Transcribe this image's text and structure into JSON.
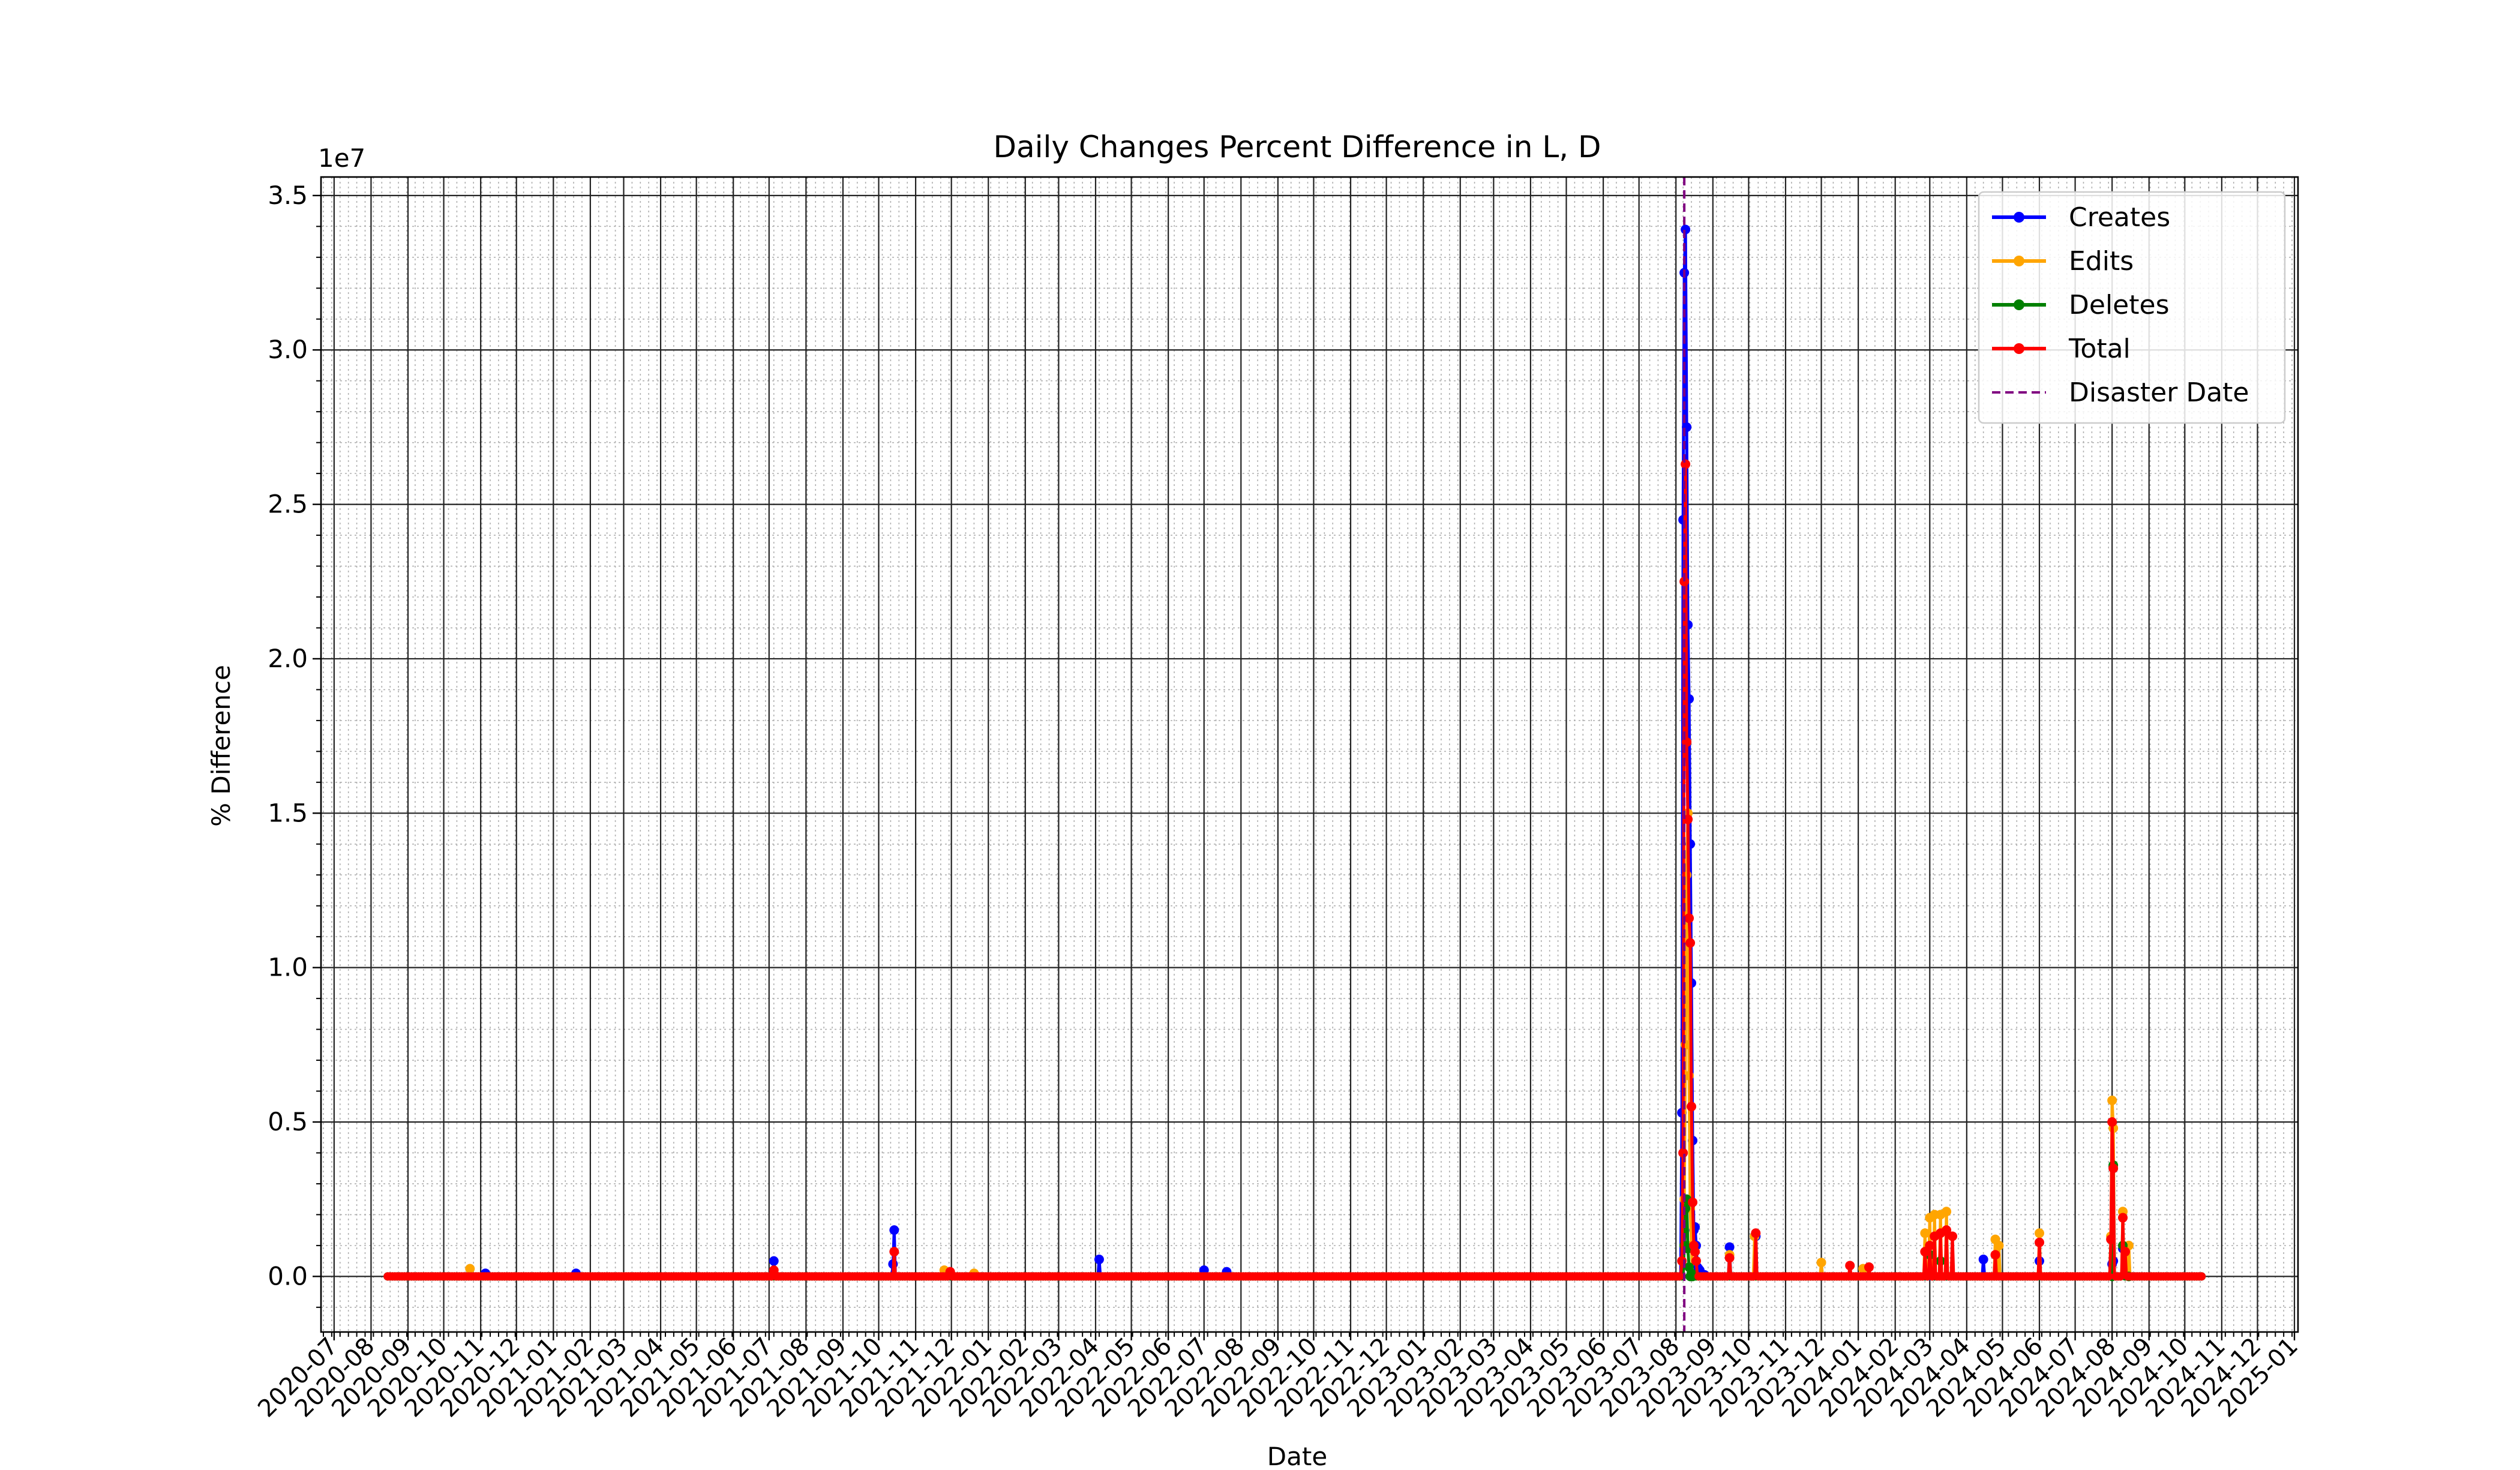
{
  "chart_data": {
    "type": "line",
    "title": "Daily Changes Percent Difference in L, D",
    "xlabel": "Date",
    "ylabel": "% Difference",
    "y_offset_text": "1e7",
    "xlim": [
      "2020-06-20",
      "2025-01-04"
    ],
    "ylim": [
      -1800000,
      35600000
    ],
    "y_ticks": [
      0,
      5000000,
      10000000,
      15000000,
      20000000,
      25000000,
      30000000,
      35000000
    ],
    "y_tick_labels": [
      "0.0",
      "0.5",
      "1.0",
      "1.5",
      "2.0",
      "2.5",
      "3.0",
      "3.5"
    ],
    "x_ticks": [
      "2020-07",
      "2020-08",
      "2020-09",
      "2020-10",
      "2020-11",
      "2020-12",
      "2021-01",
      "2021-02",
      "2021-03",
      "2021-04",
      "2021-05",
      "2021-06",
      "2021-07",
      "2021-08",
      "2021-09",
      "2021-10",
      "2021-11",
      "2021-12",
      "2022-01",
      "2022-02",
      "2022-03",
      "2022-04",
      "2022-05",
      "2022-06",
      "2022-07",
      "2022-08",
      "2022-09",
      "2022-10",
      "2022-11",
      "2022-12",
      "2023-01",
      "2023-02",
      "2023-03",
      "2023-04",
      "2023-05",
      "2023-06",
      "2023-07",
      "2023-08",
      "2023-09",
      "2023-10",
      "2023-11",
      "2023-12",
      "2024-01",
      "2024-02",
      "2024-03",
      "2024-04",
      "2024-05",
      "2024-06",
      "2024-07",
      "2024-08",
      "2024-09",
      "2024-10",
      "2024-11",
      "2024-12",
      "2025-01"
    ],
    "grid": true,
    "legend_position": "upper-right",
    "disaster_date": "2023-08-08",
    "disaster_label": "Disaster Date",
    "disaster_color": "#800080",
    "data_range": [
      "2020-08-15",
      "2024-10-15"
    ],
    "series": [
      {
        "name": "Creates",
        "color": "#0000ff",
        "x": [
          "2020-11-05",
          "2021-01-20",
          "2021-07-05",
          "2021-10-13",
          "2021-10-14",
          "2022-04-04",
          "2022-07-01",
          "2022-07-20",
          "2023-08-06",
          "2023-08-07",
          "2023-08-08",
          "2023-08-09",
          "2023-08-10",
          "2023-08-11",
          "2023-08-12",
          "2023-08-13",
          "2023-08-14",
          "2023-08-15",
          "2023-08-16",
          "2023-08-17",
          "2023-08-18",
          "2023-08-19",
          "2023-08-20",
          "2023-08-21",
          "2023-08-22",
          "2023-08-25",
          "2023-09-15",
          "2023-10-07",
          "2024-04-15",
          "2024-06-01",
          "2024-08-01",
          "2024-08-02",
          "2024-08-10"
        ],
        "y": [
          100000,
          100000,
          500000,
          400000,
          1500000,
          550000,
          200000,
          150000,
          5300000,
          24500000,
          32500000,
          33900000,
          27500000,
          21100000,
          18700000,
          14000000,
          9500000,
          4400000,
          1500000,
          1600000,
          1000000,
          300000,
          250000,
          200000,
          100000,
          50000,
          950000,
          1300000,
          550000,
          500000,
          400000,
          500000,
          900000
        ]
      },
      {
        "name": "Edits",
        "color": "#ffa500",
        "x": [
          "2020-10-23",
          "2021-11-25",
          "2021-12-20",
          "2023-08-08",
          "2023-08-09",
          "2023-08-10",
          "2023-08-11",
          "2023-08-12",
          "2023-08-13",
          "2023-08-14",
          "2023-09-15",
          "2023-10-06",
          "2023-12-01",
          "2024-01-05",
          "2024-02-26",
          "2024-03-01",
          "2024-03-05",
          "2024-03-10",
          "2024-03-15",
          "2024-04-25",
          "2024-04-28",
          "2024-06-01",
          "2024-07-31",
          "2024-08-01",
          "2024-08-02",
          "2024-08-10",
          "2024-08-15"
        ],
        "y": [
          250000,
          200000,
          100000,
          2500000,
          7500000,
          13000000,
          15000000,
          6500000,
          2200000,
          1000000,
          700000,
          1300000,
          450000,
          250000,
          1400000,
          1900000,
          2000000,
          2000000,
          2100000,
          1200000,
          1000000,
          1400000,
          1300000,
          5700000,
          4800000,
          2100000,
          1000000
        ]
      },
      {
        "name": "Deletes",
        "color": "#008000",
        "x": [
          "2023-08-08",
          "2023-08-09",
          "2023-08-10",
          "2023-08-11",
          "2023-08-12",
          "2023-08-13",
          "2023-08-14",
          "2023-08-15",
          "2024-03-01",
          "2024-03-10",
          "2024-08-01",
          "2024-08-02",
          "2024-08-10",
          "2024-08-15"
        ],
        "y": [
          1000000,
          2200000,
          2500000,
          900000,
          300000,
          0,
          100000,
          0,
          700000,
          500000,
          0,
          3600000,
          1000000,
          0
        ]
      },
      {
        "name": "Total",
        "color": "#ff0000",
        "x": [
          "2021-07-05",
          "2021-10-14",
          "2021-11-30",
          "2023-08-06",
          "2023-08-07",
          "2023-08-08",
          "2023-08-09",
          "2023-08-10",
          "2023-08-11",
          "2023-08-12",
          "2023-08-13",
          "2023-08-14",
          "2023-08-15",
          "2023-08-16",
          "2023-08-17",
          "2023-08-18",
          "2023-09-15",
          "2023-10-07",
          "2023-12-25",
          "2024-01-10",
          "2024-02-26",
          "2024-03-01",
          "2024-03-05",
          "2024-03-10",
          "2024-03-15",
          "2024-03-20",
          "2024-04-25",
          "2024-06-01",
          "2024-07-31",
          "2024-08-01",
          "2024-08-02",
          "2024-08-10",
          "2024-08-12"
        ],
        "y": [
          200000,
          800000,
          150000,
          500000,
          4000000,
          22500000,
          26300000,
          17300000,
          14800000,
          11600000,
          10800000,
          5500000,
          2400000,
          1000000,
          800000,
          500000,
          600000,
          1400000,
          350000,
          300000,
          800000,
          1000000,
          1300000,
          1400000,
          1500000,
          1300000,
          700000,
          1100000,
          1200000,
          5000000,
          3500000,
          1900000,
          800000
        ]
      }
    ]
  }
}
